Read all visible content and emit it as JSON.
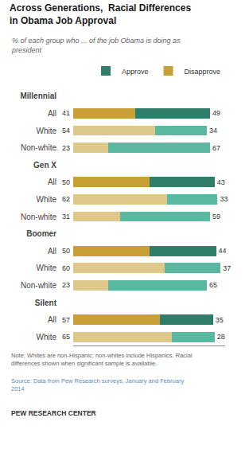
{
  "chart_data": {
    "type": "bar",
    "orientation": "horizontal",
    "stacked": true,
    "data_labels": true,
    "tick_labels": "y",
    "grid": false,
    "legend": "upper right",
    "title": "Across Generations,  Racial Differences\nin Obama Job Approval",
    "subtitle": "% of each group who ... of the job Obama is doing as\npresident",
    "annotations": [
      "Note: Whites are non-Hispanic; non-whites include Hispanics. Racial\ndifferences shown when significant sample is available.",
      "Source: Data from Pew Research surveys, January and February\n2014",
      "PEW RESEARCH CENTER"
    ],
    "categories": [
      "Millennial",
      "All",
      "White",
      "Non-white",
      "Gen X",
      "All",
      "White",
      "Non-white",
      "Boomer",
      "All",
      "White",
      "Non-white",
      "Silent",
      "All",
      "White"
    ],
    "series": [
      {
        "name": "Disapprove",
        "color": "#C9A035",
        "colors": [
          null,
          "#C9A035",
          "#DEC98A",
          "#DEC98A",
          null,
          "#C9A035",
          "#DEC98A",
          "#DEC98A",
          null,
          "#C9A035",
          "#DEC98A",
          "#DEC98A",
          null,
          "#C9A035",
          "#DEC98A"
        ],
        "values": [
          null,
          41,
          54,
          23,
          null,
          50,
          62,
          31,
          null,
          50,
          60,
          23,
          null,
          57,
          65
        ]
      },
      {
        "name": "Approve",
        "color": "#2E7E6A",
        "colors": [
          null,
          "#2E7E6A",
          "#5BB8A0",
          "#5BB8A0",
          null,
          "#2E7E6A",
          "#5BB8A0",
          "#5BB8A0",
          null,
          "#2E7E6A",
          "#5BB8A0",
          "#5BB8A0",
          null,
          "#2E7E6A",
          "#5BB8A0"
        ],
        "values": [
          null,
          49,
          34,
          67,
          null,
          43,
          33,
          59,
          null,
          44,
          37,
          65,
          null,
          35,
          28
        ]
      }
    ],
    "xlim": [
      0,
      100
    ]
  }
}
